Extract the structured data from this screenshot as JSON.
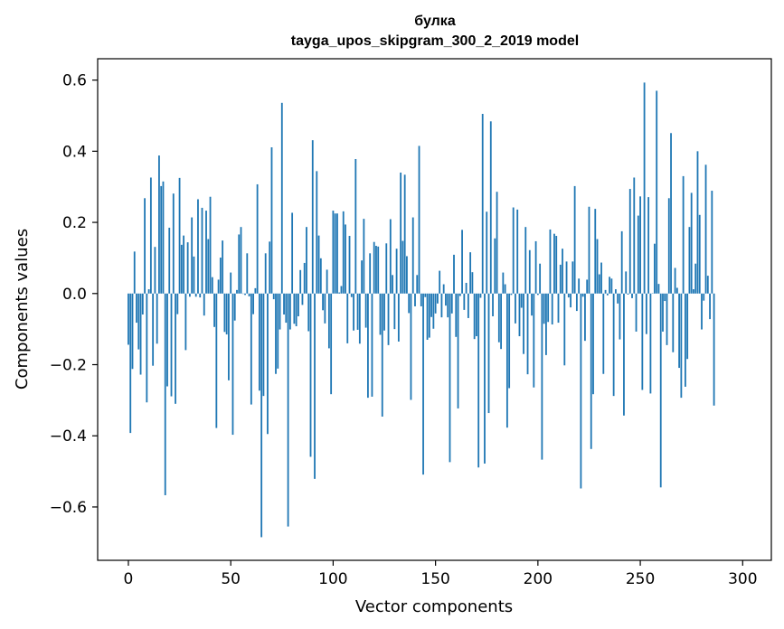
{
  "chart_data": {
    "type": "bar",
    "title": "булка",
    "subtitle": "tayga_upos_skipgram_300_2_2019 model",
    "xlabel": "Vector components",
    "ylabel": "Components values",
    "xlim": [
      -15,
      314
    ],
    "ylim": [
      -0.75,
      0.66
    ],
    "xticks": [
      0,
      50,
      100,
      150,
      200,
      250,
      300
    ],
    "xtick_labels": [
      "0",
      "50",
      "100",
      "150",
      "200",
      "250",
      "300"
    ],
    "yticks": [
      -0.6,
      -0.4,
      -0.2,
      0.0,
      0.2,
      0.4,
      0.6
    ],
    "ytick_labels": [
      "−0.6",
      "−0.4",
      "−0.2",
      "0.0",
      "0.2",
      "0.4",
      "0.6"
    ],
    "bar_color": "#1f77b4",
    "grid": false,
    "values": [
      -0.144,
      -0.392,
      -0.212,
      0.118,
      -0.082,
      -0.157,
      -0.228,
      -0.059,
      0.268,
      -0.306,
      0.012,
      0.326,
      -0.203,
      0.131,
      -0.141,
      0.388,
      0.302,
      0.315,
      -0.567,
      -0.261,
      0.185,
      -0.289,
      0.281,
      -0.31,
      -0.058,
      0.325,
      0.137,
      0.163,
      -0.159,
      0.144,
      -0.009,
      0.214,
      0.104,
      -0.009,
      0.265,
      -0.011,
      0.241,
      -0.062,
      0.233,
      0.153,
      0.272,
      0.046,
      -0.094,
      -0.378,
      0.039,
      0.101,
      0.149,
      -0.108,
      -0.115,
      -0.244,
      0.059,
      -0.397,
      -0.076,
      0.01,
      0.166,
      0.187,
      -0.001,
      -0.004,
      0.113,
      -0.008,
      -0.312,
      -0.058,
      0.015,
      0.307,
      -0.273,
      -0.685,
      -0.288,
      0.113,
      -0.395,
      0.146,
      0.411,
      -0.016,
      -0.226,
      -0.211,
      -0.101,
      0.536,
      -0.059,
      -0.082,
      -0.655,
      -0.101,
      0.227,
      -0.085,
      -0.092,
      -0.064,
      0.066,
      -0.032,
      0.086,
      0.187,
      -0.106,
      -0.459,
      0.431,
      -0.521,
      0.344,
      0.163,
      0.099,
      -0.047,
      -0.084,
      0.067,
      -0.154,
      -0.283,
      0.233,
      0.225,
      0.225,
      0.003,
      0.021,
      0.231,
      0.194,
      -0.14,
      0.162,
      -0.01,
      -0.104,
      0.378,
      -0.102,
      -0.141,
      0.093,
      0.21,
      -0.096,
      -0.293,
      0.113,
      -0.29,
      0.145,
      0.134,
      0.132,
      -0.116,
      -0.346,
      -0.104,
      0.141,
      -0.145,
      0.209,
      0.052,
      -0.1,
      0.126,
      -0.135,
      0.34,
      0.148,
      0.334,
      0.105,
      -0.055,
      -0.299,
      0.214,
      -0.036,
      0.052,
      0.415,
      -0.036,
      -0.509,
      -0.01,
      -0.13,
      -0.124,
      -0.066,
      -0.099,
      -0.056,
      -0.028,
      0.064,
      -0.067,
      0.026,
      -0.034,
      -0.067,
      -0.474,
      -0.056,
      0.109,
      -0.122,
      -0.323,
      -0.007,
      0.179,
      -0.046,
      0.03,
      -0.069,
      0.116,
      0.06,
      -0.128,
      -0.12,
      -0.489,
      -0.012,
      0.505,
      -0.478,
      0.23,
      -0.336,
      0.484,
      -0.064,
      0.155,
      0.286,
      -0.137,
      -0.156,
      0.059,
      0.026,
      -0.377,
      -0.266,
      -0.004,
      0.242,
      -0.084,
      0.236,
      -0.12,
      -0.04,
      -0.17,
      0.187,
      -0.227,
      0.122,
      -0.062,
      -0.264,
      0.147,
      -0.004,
      0.084,
      -0.467,
      -0.085,
      -0.173,
      -0.08,
      0.18,
      -0.087,
      0.168,
      0.162,
      -0.082,
      0.081,
      0.126,
      -0.202,
      0.09,
      -0.011,
      -0.039,
      0.09,
      0.302,
      -0.049,
      0.042,
      -0.548,
      -0.009,
      -0.133,
      0.039,
      0.244,
      -0.437,
      -0.283,
      0.238,
      0.153,
      0.054,
      0.087,
      -0.226,
      0.01,
      -0.005,
      0.047,
      0.042,
      -0.288,
      0.012,
      -0.028,
      -0.129,
      0.175,
      -0.343,
      0.062,
      -0.003,
      0.294,
      -0.013,
      0.326,
      -0.107,
      0.219,
      0.273,
      -0.271,
      0.593,
      -0.114,
      0.271,
      -0.281,
      0.001,
      0.14,
      0.57,
      0.027,
      -0.545,
      -0.107,
      -0.021,
      -0.145,
      0.268,
      0.451,
      -0.165,
      0.072,
      0.016,
      -0.209,
      -0.293,
      0.33,
      -0.262,
      -0.184,
      0.187,
      0.283,
      0.012,
      0.084,
      0.4,
      0.221,
      -0.101,
      -0.02,
      0.362,
      0.05,
      -0.072,
      0.289,
      -0.315
    ]
  }
}
